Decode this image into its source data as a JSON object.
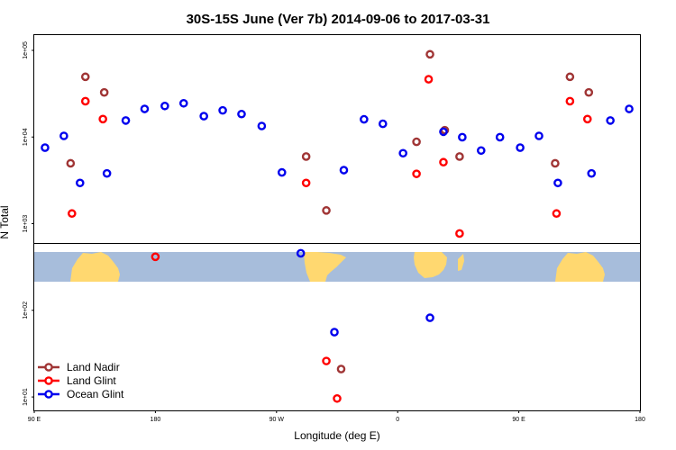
{
  "chart_data": {
    "type": "scatter",
    "title": "30S-15S June (Ver 7b)   2014-09-06 to 2017-03-31",
    "xlabel": "Longitude (deg E)",
    "ylabel": "N Total",
    "x_axis": {
      "range_deg_east": [
        90,
        540
      ],
      "ticks": [
        {
          "value": 90,
          "label": "90 E"
        },
        {
          "value": 180,
          "label": "180"
        },
        {
          "value": 270,
          "label": "90 W"
        },
        {
          "value": 360,
          "label": "0"
        },
        {
          "value": 450,
          "label": "90 E"
        },
        {
          "value": 540,
          "label": "180"
        }
      ]
    },
    "y_axis": {
      "scale": "log",
      "range": [
        7,
        150000
      ],
      "ticks": [
        {
          "value": 10,
          "label": "1e+01"
        },
        {
          "value": 100,
          "label": "1e+02"
        },
        {
          "value": 1000,
          "label": "1e+03"
        },
        {
          "value": 10000,
          "label": "1e+04"
        },
        {
          "value": 100000,
          "label": "1e+05"
        }
      ]
    },
    "grid": false,
    "legend_position": "bottom-left",
    "series": [
      {
        "name": "Land Nadir",
        "color": "#a03535",
        "points": [
          {
            "x": 117,
            "y": 4970
          },
          {
            "x": 128,
            "y": 49500
          },
          {
            "x": 142,
            "y": 32700
          },
          {
            "x": 292,
            "y": 5950
          },
          {
            "x": 307,
            "y": 1420
          },
          {
            "x": 318,
            "y": 21
          },
          {
            "x": 374,
            "y": 8800
          },
          {
            "x": 384,
            "y": 90000
          },
          {
            "x": 395,
            "y": 12000
          },
          {
            "x": 406,
            "y": 5950
          },
          {
            "x": 477,
            "y": 4970
          },
          {
            "x": 488,
            "y": 49500
          },
          {
            "x": 502,
            "y": 32700
          }
        ]
      },
      {
        "name": "Land Glint",
        "color": "#ff0000",
        "points": [
          {
            "x": 118,
            "y": 1310
          },
          {
            "x": 128,
            "y": 25900
          },
          {
            "x": 141,
            "y": 16100
          },
          {
            "x": 180,
            "y": 415
          },
          {
            "x": 292,
            "y": 2950
          },
          {
            "x": 307,
            "y": 26
          },
          {
            "x": 315,
            "y": 9.6
          },
          {
            "x": 374,
            "y": 3760
          },
          {
            "x": 383,
            "y": 46400
          },
          {
            "x": 394,
            "y": 5120
          },
          {
            "x": 406,
            "y": 770
          },
          {
            "x": 478,
            "y": 1310
          },
          {
            "x": 488,
            "y": 25900
          },
          {
            "x": 501,
            "y": 16100
          }
        ]
      },
      {
        "name": "Ocean Glint",
        "color": "#0000ee",
        "points": [
          {
            "x": 98,
            "y": 7540
          },
          {
            "x": 112,
            "y": 10300
          },
          {
            "x": 124,
            "y": 2950
          },
          {
            "x": 144,
            "y": 3800
          },
          {
            "x": 158,
            "y": 15500
          },
          {
            "x": 172,
            "y": 21100
          },
          {
            "x": 187,
            "y": 22800
          },
          {
            "x": 201,
            "y": 24500
          },
          {
            "x": 216,
            "y": 17400
          },
          {
            "x": 230,
            "y": 20300
          },
          {
            "x": 244,
            "y": 18400
          },
          {
            "x": 259,
            "y": 13400
          },
          {
            "x": 274,
            "y": 3900
          },
          {
            "x": 288,
            "y": 455
          },
          {
            "x": 313,
            "y": 56
          },
          {
            "x": 320,
            "y": 4150
          },
          {
            "x": 335,
            "y": 16000
          },
          {
            "x": 349,
            "y": 14200
          },
          {
            "x": 364,
            "y": 6500
          },
          {
            "x": 384,
            "y": 82
          },
          {
            "x": 394,
            "y": 11500
          },
          {
            "x": 408,
            "y": 9950
          },
          {
            "x": 422,
            "y": 6980
          },
          {
            "x": 436,
            "y": 9950
          },
          {
            "x": 451,
            "y": 7540
          },
          {
            "x": 465,
            "y": 10300
          },
          {
            "x": 479,
            "y": 2950
          },
          {
            "x": 504,
            "y": 3800
          },
          {
            "x": 518,
            "y": 15500
          },
          {
            "x": 532,
            "y": 21100
          }
        ]
      }
    ]
  },
  "map_strip": {
    "ocean_color": "#a7bddb",
    "land_color": "#ffd870"
  }
}
